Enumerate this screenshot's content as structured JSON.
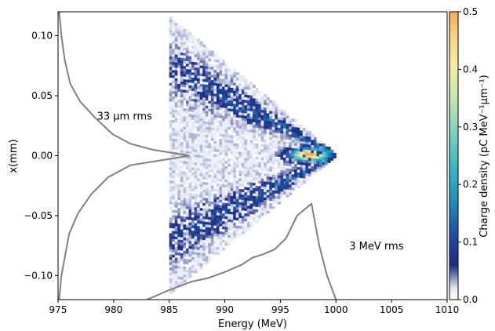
{
  "chart_data": {
    "type": "heatmap",
    "xlabel": "Energy (MeV)",
    "ylabel": "x(mm)",
    "xlim": [
      975,
      1010
    ],
    "ylim": [
      -0.12,
      0.12
    ],
    "xticks": [
      "975",
      "980",
      "985",
      "990",
      "995",
      "1000",
      "1005",
      "1010"
    ],
    "yticks": [
      "−0.10",
      "−0.05",
      "0.00",
      "0.05",
      "0.10"
    ],
    "colorbar": {
      "label": "Charge density (pC MeV⁻¹µm⁻¹)",
      "range": [
        0.0,
        0.5
      ],
      "ticks": [
        "0.0",
        "0.1",
        "0.2",
        "0.3",
        "0.4",
        "0.5"
      ],
      "colormap": "YlGnBu-like (white → navy → teal → yellow → orange)"
    },
    "annotations": [
      {
        "text": "33 µm rms",
        "x": 978.5,
        "y": 0.03
      },
      {
        "text": "3 MeV rms",
        "x": 1001.2,
        "y": -0.078
      }
    ],
    "heatmap_region": {
      "description": "triangular (chevron) distribution; vertex at ~1000 MeV, x=0",
      "energy_range": [
        985,
        1000
      ],
      "x_half_width_at_985MeV": 0.115,
      "peak_density": {
        "energy": 997.5,
        "x": 0.0,
        "value": 0.5
      }
    },
    "series": [
      {
        "name": "transverse profile (along x)",
        "color": "#808080",
        "points": [
          {
            "energy": 975.1,
            "x": 0.12
          },
          {
            "energy": 975.3,
            "x": 0.1
          },
          {
            "energy": 975.6,
            "x": 0.08
          },
          {
            "energy": 976.1,
            "x": 0.06
          },
          {
            "energy": 977.0,
            "x": 0.045
          },
          {
            "energy": 978.3,
            "x": 0.032
          },
          {
            "energy": 979.9,
            "x": 0.018
          },
          {
            "energy": 981.5,
            "x": 0.01
          },
          {
            "energy": 983.5,
            "x": 0.005
          },
          {
            "energy": 985.5,
            "x": 0.002
          },
          {
            "energy": 986.8,
            "x": 0.0
          },
          {
            "energy": 985.5,
            "x": -0.002
          },
          {
            "energy": 983.5,
            "x": -0.005
          },
          {
            "energy": 981.5,
            "x": -0.008
          },
          {
            "energy": 979.5,
            "x": -0.018
          },
          {
            "energy": 978.0,
            "x": -0.032
          },
          {
            "energy": 976.8,
            "x": -0.048
          },
          {
            "energy": 976.0,
            "x": -0.065
          },
          {
            "energy": 975.6,
            "x": -0.085
          },
          {
            "energy": 975.3,
            "x": -0.1
          },
          {
            "energy": 975.1,
            "x": -0.12
          }
        ]
      },
      {
        "name": "energy spectrum",
        "color": "#808080",
        "points": [
          {
            "energy": 983.0,
            "x": -0.12
          },
          {
            "energy": 985.0,
            "x": -0.112
          },
          {
            "energy": 987.0,
            "x": -0.105
          },
          {
            "energy": 988.5,
            "x": -0.102
          },
          {
            "energy": 990.0,
            "x": -0.097
          },
          {
            "energy": 991.5,
            "x": -0.091
          },
          {
            "energy": 992.5,
            "x": -0.085
          },
          {
            "energy": 993.5,
            "x": -0.082
          },
          {
            "energy": 994.5,
            "x": -0.078
          },
          {
            "energy": 995.5,
            "x": -0.069
          },
          {
            "energy": 996.5,
            "x": -0.05
          },
          {
            "energy": 997.8,
            "x": -0.04
          },
          {
            "energy": 998.5,
            "x": -0.075
          },
          {
            "energy": 999.2,
            "x": -0.1
          },
          {
            "energy": 1000.0,
            "x": -0.12
          }
        ]
      }
    ]
  }
}
